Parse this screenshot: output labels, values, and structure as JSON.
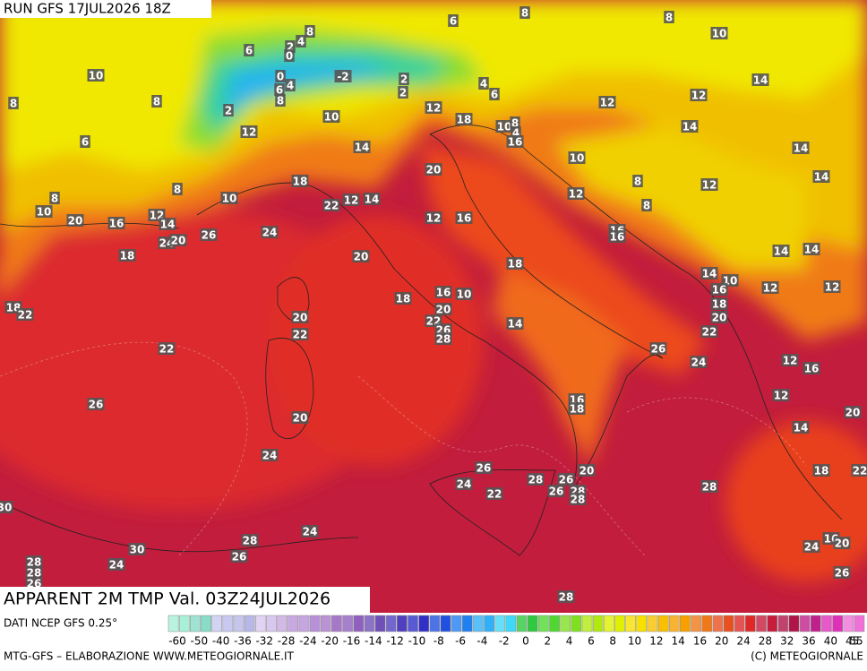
{
  "header": {
    "run": "RUN GFS 17JUL2026 18Z"
  },
  "map": {
    "title": "APPARENT 2M TMP Val. 03Z24JUL2026",
    "labels": [
      6,
      8,
      10,
      8,
      2,
      4,
      0,
      6,
      10,
      8,
      8,
      0,
      6,
      4,
      8,
      -2,
      2,
      2,
      4,
      6,
      8,
      14,
      12,
      12,
      2,
      10,
      12,
      18,
      10,
      8,
      4,
      16,
      14,
      12,
      6,
      14,
      14,
      10,
      20,
      14,
      18,
      8,
      8,
      12,
      12,
      8,
      8,
      10,
      22,
      12,
      14,
      10,
      20,
      16,
      12,
      14,
      12,
      16,
      16,
      16,
      24,
      20,
      26,
      24,
      14,
      14,
      18,
      20,
      18,
      14,
      10,
      16,
      12,
      12,
      18,
      22,
      18,
      16,
      10,
      18,
      20,
      20,
      22,
      26,
      28,
      14,
      20,
      22,
      22,
      22,
      26,
      24,
      12,
      16,
      16,
      18,
      12,
      26,
      20,
      20,
      14,
      24,
      18,
      22,
      20,
      26,
      24,
      28,
      26,
      26,
      22,
      28,
      28,
      28,
      30,
      24,
      28,
      30,
      26,
      24,
      28,
      28,
      26,
      16,
      20,
      24,
      26,
      28
    ]
  },
  "legend": {
    "ticks": [
      -60,
      -50,
      -40,
      -36,
      -32,
      -28,
      -24,
      -20,
      -16,
      -14,
      -12,
      -10,
      -8,
      -6,
      -4,
      -2,
      0,
      2,
      4,
      6,
      8,
      10,
      12,
      14,
      16,
      20,
      24,
      28,
      32,
      36,
      40,
      45,
      55
    ]
  },
  "footer": {
    "source": "DATI NCEP GFS 0.25°",
    "credit": "MTG-GFS – ELABORAZIONE WWW.METEOGIORNALE.IT",
    "copyright": "(C) METEOGIORNALE"
  }
}
